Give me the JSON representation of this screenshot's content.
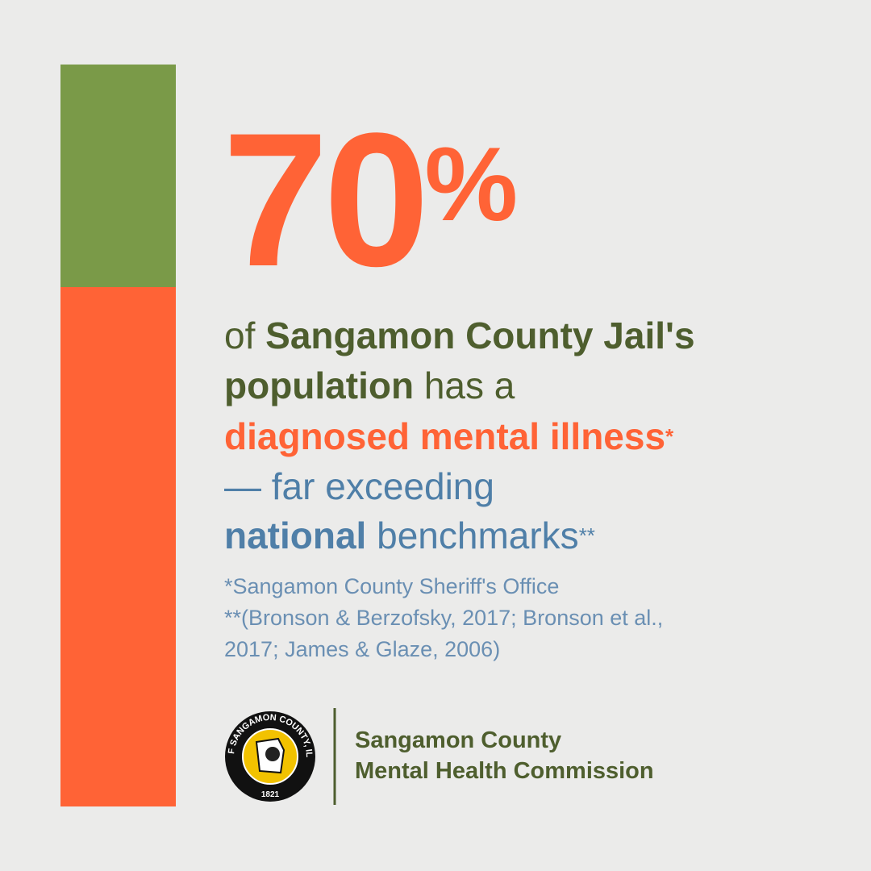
{
  "stat": {
    "value": 70,
    "label": "70%",
    "range": [
      0,
      100
    ],
    "fill_color": "#ff6336",
    "rest_color": "#7a9a48"
  },
  "statement": [
    [
      {
        "text": "of ",
        "style": "plain-green"
      },
      {
        "text": "Sangamon County Jail's",
        "style": "bold-green"
      }
    ],
    [
      {
        "text": "population",
        "style": "bold-green"
      },
      {
        "text": " has a",
        "style": "plain-green"
      }
    ],
    [
      {
        "text": "diagnosed mental illness",
        "style": "bold-orange"
      },
      {
        "text": "*",
        "style": "sup-orange"
      }
    ],
    [
      {
        "text": "— far exceeding",
        "style": "plain-blue"
      }
    ],
    [
      {
        "text": "national",
        "style": "bold-blue"
      },
      {
        "text": " benchmarks",
        "style": "plain-blue"
      },
      {
        "text": "**",
        "style": "sup-blue"
      }
    ]
  ],
  "sources": [
    "*Sangamon County Sheriff's Office",
    "**(Bronson & Berzofsky, 2017; Bronson et al.,",
    "2017; James & Glaze, 2006)"
  ],
  "footer": {
    "seal_text": "SEAL OF SANGAMON COUNTY, ILLINOIS",
    "seal_year": "1821",
    "org_lines": [
      "Sangamon County",
      "Mental Health Commission"
    ]
  }
}
